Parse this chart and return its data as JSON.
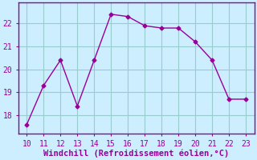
{
  "x": [
    10,
    11,
    12,
    13,
    14,
    15,
    16,
    17,
    18,
    19,
    20,
    21,
    22,
    23
  ],
  "y": [
    17.6,
    19.3,
    20.4,
    18.4,
    20.4,
    22.4,
    22.3,
    21.9,
    21.8,
    21.8,
    21.2,
    20.4,
    18.7,
    18.7
  ],
  "line_color": "#990099",
  "marker": "D",
  "marker_size": 2.5,
  "bg_color": "#cceeff",
  "grid_color": "#99cccc",
  "xlabel": "Windchill (Refroidissement éolien,°C)",
  "xlabel_color": "#990099",
  "xlabel_fontsize": 7.5,
  "tick_color": "#990099",
  "tick_fontsize": 7,
  "spine_color": "#990099",
  "xlim": [
    9.5,
    23.5
  ],
  "ylim": [
    17.2,
    22.9
  ],
  "yticks": [
    18,
    19,
    20,
    21,
    22
  ],
  "xticks": [
    10,
    11,
    12,
    13,
    14,
    15,
    16,
    17,
    18,
    19,
    20,
    21,
    22,
    23
  ]
}
